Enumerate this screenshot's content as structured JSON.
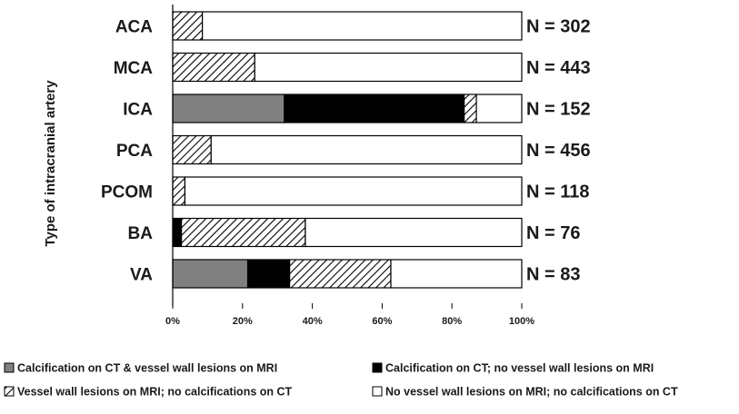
{
  "chart_data": {
    "type": "bar",
    "orientation": "horizontal",
    "stacked": true,
    "percent": true,
    "ylabel": "Type of intracranial artery",
    "categories": [
      "ACA",
      "MCA",
      "ICA",
      "PCA",
      "PCOM",
      "BA",
      "VA"
    ],
    "n_labels": [
      "N = 302",
      "N = 443",
      "N = 152",
      "N = 456",
      "N = 118",
      "N = 76",
      "N = 83"
    ],
    "xticks": [
      "0%",
      "20%",
      "40%",
      "60%",
      "80%",
      "100%"
    ],
    "xlim": [
      0,
      100
    ],
    "series": [
      {
        "name": "Calcification on CT & vessel wall lesions on MRI",
        "color": "#808080",
        "pattern": "solid",
        "values": [
          0,
          0,
          32,
          0,
          0,
          0,
          21.5
        ]
      },
      {
        "name": "Calcification on CT; no vessel wall lesions on MRI",
        "color": "#000000",
        "pattern": "solid",
        "values": [
          0,
          0,
          51.5,
          0,
          0,
          2.5,
          12
        ]
      },
      {
        "name": "Vessel wall lesions on MRI; no calcifications on CT",
        "color": "#000000",
        "pattern": "hatch",
        "values": [
          8.5,
          23.5,
          3.5,
          11,
          3.5,
          35.5,
          29
        ]
      },
      {
        "name": "No vessel wall lesions on MRI; no calcifications on CT",
        "color": "#ffffff",
        "pattern": "white",
        "values": [
          91.5,
          76.5,
          13,
          89,
          96.5,
          62,
          37.5
        ]
      }
    ]
  }
}
